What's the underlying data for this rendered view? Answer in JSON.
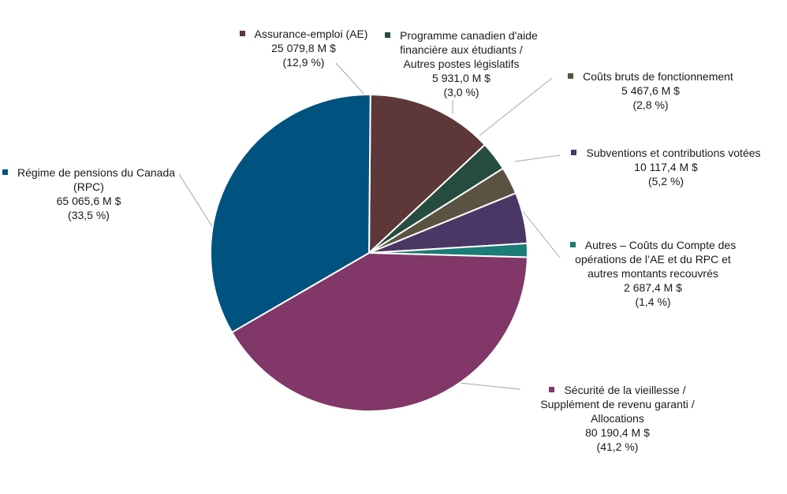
{
  "chart_data": {
    "type": "pie",
    "slices": [
      {
        "label_lines": [
          "Assurance-emploi (AE)"
        ],
        "amount": "25 079,8 M $",
        "percent_label": "(12,9 %)",
        "value": 12.9,
        "color": "#5E3738"
      },
      {
        "label_lines": [
          "Programme canadien d'aide",
          "financière aux étudiants /",
          "Autres postes législatifs"
        ],
        "amount": "5 931,0 M $",
        "percent_label": "(3,0 %)",
        "value": 3.0,
        "color": "#254C3F"
      },
      {
        "label_lines": [
          "Coûts bruts de fonctionnement"
        ],
        "amount": "5 467,6 M $",
        "percent_label": "(2,8 %)",
        "value": 2.8,
        "color": "#5A5341"
      },
      {
        "label_lines": [
          "Subventions et contributions votées"
        ],
        "amount": "10 117,4 M $",
        "percent_label": "(5,2 %)",
        "value": 5.2,
        "color": "#4B3765"
      },
      {
        "label_lines": [
          "Autres – Coûts du Compte des",
          "opérations de l’AE et du RPC et",
          "autres montants recouvrés"
        ],
        "amount": "2 687,4 M $",
        "percent_label": "(1,4 %)",
        "value": 1.4,
        "color": "#1C7C77"
      },
      {
        "label_lines": [
          "Sécurité de la vieillesse /",
          "Supplément de revenu garanti /",
          "Allocations"
        ],
        "amount": "80 190,4 M $",
        "percent_label": "(41,2 %)",
        "value": 41.2,
        "color": "#813767"
      },
      {
        "label_lines": [
          "Régime de pensions du Canada",
          "(RPC)"
        ],
        "amount": "65 065,6 M $",
        "percent_label": "(33,5 %)",
        "value": 33.5,
        "color": "#00527F"
      }
    ]
  }
}
